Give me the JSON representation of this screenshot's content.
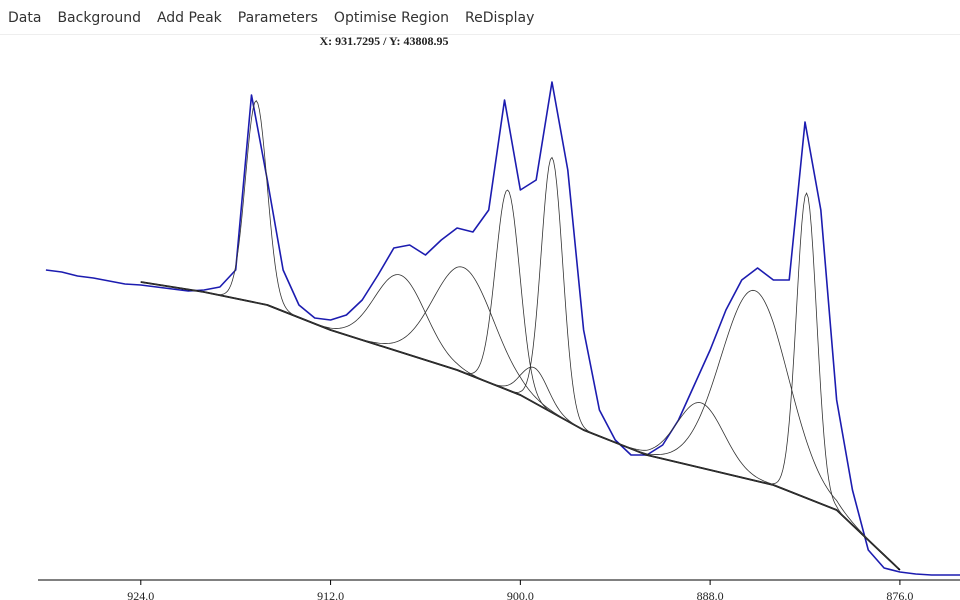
{
  "menu": [
    "Data",
    "Background",
    "Add Peak",
    "Parameters",
    "Optimise Region",
    "ReDisplay"
  ],
  "readout": "X: 931.7295 / Y: 43808.95",
  "chart_data": {
    "type": "line",
    "xlim": [
      930.5,
      872.2
    ],
    "ylim": [
      0,
      58000
    ],
    "xticks": [
      {
        "value": 924,
        "label": "924.0"
      },
      {
        "value": 912,
        "label": "912.0"
      },
      {
        "value": 900,
        "label": "900.0"
      },
      {
        "value": 888,
        "label": "888.0"
      },
      {
        "value": 876,
        "label": "876.0"
      }
    ],
    "series": [
      {
        "color": "#1c1cb0",
        "x": [
          930,
          929,
          928,
          927,
          926,
          925,
          924,
          923,
          922,
          921,
          920,
          919,
          918,
          917,
          916,
          915,
          914,
          913,
          912,
          911,
          910,
          909,
          908,
          907,
          906,
          905,
          904,
          903,
          902,
          901,
          900,
          899,
          898,
          897,
          896,
          895,
          894,
          893,
          892,
          891,
          890,
          889,
          888,
          887,
          886,
          885,
          884,
          883,
          882,
          881,
          880,
          879,
          878,
          877,
          876,
          875,
          874,
          873,
          872
        ],
        "values": [
          31000,
          30800,
          30400,
          30200,
          29900,
          29600,
          29500,
          29300,
          29100,
          28900,
          29000,
          29300,
          31000,
          48500,
          40000,
          31000,
          27500,
          26200,
          26000,
          26500,
          28000,
          30500,
          33200,
          33500,
          32500,
          34000,
          35200,
          34800,
          37000,
          48000,
          39000,
          40000,
          49800,
          41000,
          25000,
          17000,
          14000,
          12500,
          12500,
          13500,
          16000,
          19500,
          23000,
          27000,
          30000,
          31200,
          30000,
          30000,
          45800,
          37000,
          18000,
          9000,
          3000,
          1200,
          800,
          600,
          500,
          500,
          500
        ]
      },
      {
        "color": "#000000",
        "x": [
          924,
          920,
          916,
          912,
          908,
          904,
          900,
          896,
          892,
          888,
          884,
          880,
          876
        ],
        "values": [
          29800,
          28800,
          27500,
          25000,
          23000,
          21000,
          18500,
          15000,
          12500,
          11000,
          9500,
          7000,
          1000
        ]
      }
    ],
    "components": [
      {
        "center": 916.7,
        "height": 20200,
        "fwhm": 1.6
      },
      {
        "center": 907.6,
        "height": 7700,
        "fwhm": 3.8
      },
      {
        "center": 903.6,
        "height": 10500,
        "fwhm": 4.5
      },
      {
        "center": 900.8,
        "height": 20000,
        "fwhm": 1.8
      },
      {
        "center": 899.1,
        "height": 3500,
        "fwhm": 2.0
      },
      {
        "center": 898.0,
        "height": 25500,
        "fwhm": 1.6
      },
      {
        "center": 888.6,
        "height": 6500,
        "fwhm": 3.5
      },
      {
        "center": 885.2,
        "height": 19000,
        "fwhm": 5.0
      },
      {
        "center": 881.9,
        "height": 30500,
        "fwhm": 1.5
      }
    ]
  }
}
